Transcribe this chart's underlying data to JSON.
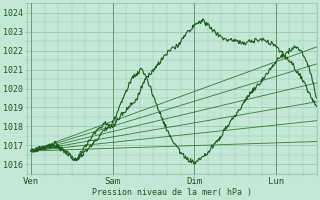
{
  "bg_color": "#c4e8d8",
  "grid_color": "#90c8a8",
  "line_color_dark": "#1a5c1a",
  "line_color_mid": "#2d7a2d",
  "ylabel": "Pression niveau de la mer( hPa )",
  "yticks": [
    1016,
    1017,
    1018,
    1019,
    1020,
    1021,
    1022,
    1023,
    1024
  ],
  "ylim": [
    1015.5,
    1024.5
  ],
  "xtick_labels": [
    "Ven",
    "Sam",
    "Dim",
    "Lun"
  ],
  "xtick_positions": [
    0.0,
    1.0,
    2.0,
    3.0
  ],
  "xlim": [
    -0.05,
    3.5
  ],
  "vlines": [
    0.0,
    1.0,
    2.0,
    3.0
  ],
  "origin_x": 0.0,
  "origin_y": 1016.7,
  "linear_ends": [
    [
      3.5,
      1022.2
    ],
    [
      3.5,
      1021.3
    ],
    [
      3.5,
      1020.3
    ],
    [
      3.5,
      1019.3
    ],
    [
      3.5,
      1018.3
    ],
    [
      3.5,
      1017.2
    ]
  ],
  "jagged1_waypoints": [
    [
      0.0,
      1016.7
    ],
    [
      0.3,
      1017.1
    ],
    [
      0.55,
      1016.2
    ],
    [
      0.75,
      1017.5
    ],
    [
      0.9,
      1018.2
    ],
    [
      1.0,
      1017.9
    ],
    [
      1.1,
      1018.6
    ],
    [
      1.2,
      1019.0
    ],
    [
      1.3,
      1019.5
    ],
    [
      1.35,
      1020.0
    ],
    [
      1.4,
      1020.5
    ],
    [
      1.5,
      1021.0
    ],
    [
      1.6,
      1021.5
    ],
    [
      1.65,
      1021.8
    ],
    [
      1.7,
      1022.0
    ],
    [
      1.8,
      1022.3
    ],
    [
      1.85,
      1022.6
    ],
    [
      1.9,
      1022.9
    ],
    [
      1.95,
      1023.1
    ],
    [
      2.0,
      1023.3
    ],
    [
      2.05,
      1023.5
    ],
    [
      2.1,
      1023.6
    ],
    [
      2.15,
      1023.4
    ],
    [
      2.2,
      1023.2
    ],
    [
      2.3,
      1022.8
    ],
    [
      2.4,
      1022.5
    ],
    [
      2.5,
      1022.6
    ],
    [
      2.6,
      1022.4
    ],
    [
      2.7,
      1022.5
    ],
    [
      2.8,
      1022.6
    ],
    [
      2.9,
      1022.5
    ],
    [
      3.0,
      1022.3
    ],
    [
      3.05,
      1022.0
    ],
    [
      3.1,
      1021.8
    ],
    [
      3.15,
      1021.5
    ],
    [
      3.2,
      1021.3
    ],
    [
      3.3,
      1020.7
    ],
    [
      3.35,
      1020.3
    ],
    [
      3.4,
      1019.8
    ],
    [
      3.45,
      1019.4
    ],
    [
      3.5,
      1019.0
    ]
  ],
  "jagged2_waypoints": [
    [
      0.0,
      1016.7
    ],
    [
      0.3,
      1017.0
    ],
    [
      0.55,
      1016.2
    ],
    [
      0.7,
      1016.8
    ],
    [
      0.8,
      1017.3
    ],
    [
      0.9,
      1017.8
    ],
    [
      1.0,
      1018.2
    ],
    [
      1.05,
      1018.6
    ],
    [
      1.1,
      1019.2
    ],
    [
      1.15,
      1019.7
    ],
    [
      1.2,
      1020.2
    ],
    [
      1.25,
      1020.6
    ],
    [
      1.3,
      1020.8
    ],
    [
      1.35,
      1021.0
    ],
    [
      1.4,
      1020.7
    ],
    [
      1.45,
      1020.2
    ],
    [
      1.5,
      1019.6
    ],
    [
      1.6,
      1018.5
    ],
    [
      1.7,
      1017.5
    ],
    [
      1.8,
      1016.8
    ],
    [
      1.9,
      1016.3
    ],
    [
      2.0,
      1016.1
    ],
    [
      2.1,
      1016.3
    ],
    [
      2.2,
      1016.8
    ],
    [
      2.3,
      1017.3
    ],
    [
      2.4,
      1018.0
    ],
    [
      2.5,
      1018.5
    ],
    [
      2.6,
      1019.2
    ],
    [
      2.7,
      1019.8
    ],
    [
      2.8,
      1020.3
    ],
    [
      2.9,
      1020.8
    ],
    [
      3.0,
      1021.4
    ],
    [
      3.1,
      1021.8
    ],
    [
      3.2,
      1022.1
    ],
    [
      3.25,
      1022.2
    ],
    [
      3.3,
      1022.0
    ],
    [
      3.35,
      1021.7
    ],
    [
      3.4,
      1021.2
    ],
    [
      3.45,
      1020.5
    ],
    [
      3.5,
      1019.5
    ]
  ]
}
